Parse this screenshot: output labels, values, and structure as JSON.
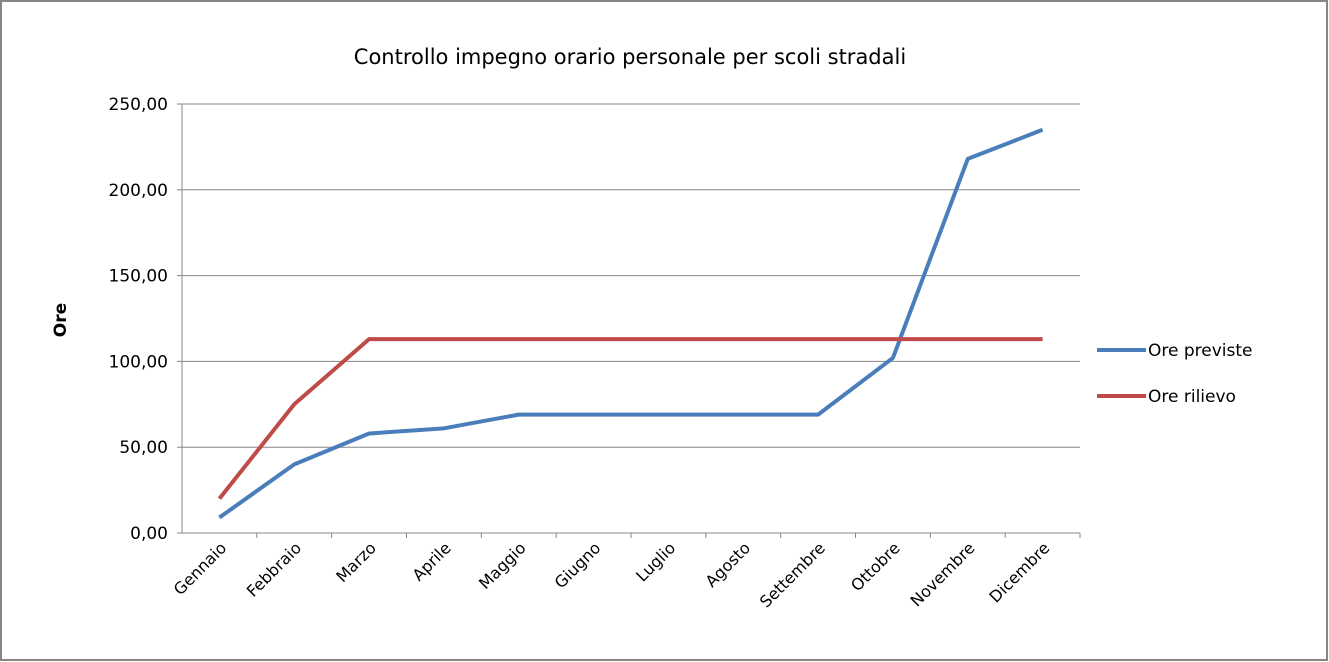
{
  "chart_data": {
    "type": "line",
    "title": "Controllo impegno orario personale per scoli stradali",
    "y_label": "Ore",
    "categories": [
      "Gennaio",
      "Febbraio",
      "Marzo",
      "Aprile",
      "Maggio",
      "Giugno",
      "Luglio",
      "Agosto",
      "Settembre",
      "Ottobre",
      "Novembre",
      "Dicembre"
    ],
    "series": [
      {
        "name": "Ore previste",
        "color": "#4a7ebb",
        "values": [
          9,
          40,
          58,
          61,
          69,
          69,
          69,
          69,
          69,
          102,
          218,
          235
        ]
      },
      {
        "name": "Ore rilievo",
        "color": "#be4b48",
        "values": [
          20,
          75,
          113,
          113,
          113,
          113,
          113,
          113,
          113,
          113,
          113,
          113
        ]
      }
    ],
    "ylim": [
      0,
      250
    ],
    "yticks": [
      {
        "value": 0,
        "label": "0,00"
      },
      {
        "value": 50,
        "label": "50,00"
      },
      {
        "value": 100,
        "label": "100,00"
      },
      {
        "value": 150,
        "label": "150,00"
      },
      {
        "value": 200,
        "label": "200,00"
      },
      {
        "value": 250,
        "label": "250,00"
      }
    ],
    "grid": true,
    "legend": "right"
  }
}
